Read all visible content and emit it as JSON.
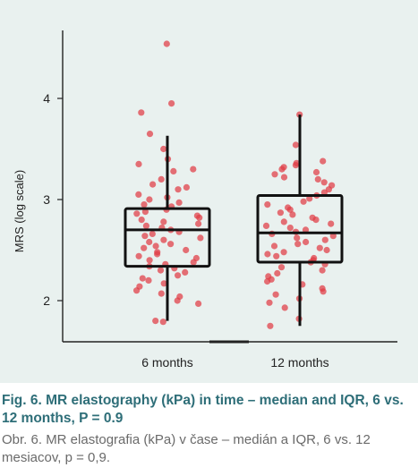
{
  "chart_data": {
    "type": "box-strip",
    "ylabel": "MRS (log scale)",
    "categories": [
      "6 months",
      "12 months"
    ],
    "yticks": [
      2,
      3,
      4
    ],
    "ylim": [
      1.6,
      4.7
    ],
    "y_scale": "linear",
    "grid": false,
    "point_color": "#e03c44",
    "box_color": "#111111",
    "boxes": [
      {
        "category": "6 months",
        "whisker_low": 1.8,
        "q1": 2.34,
        "median": 2.7,
        "q3": 2.91,
        "whisker_high": 3.63
      },
      {
        "category": "12 months",
        "whisker_low": 1.75,
        "q1": 2.38,
        "median": 2.67,
        "q3": 3.04,
        "whisker_high": 3.84
      }
    ],
    "points": [
      {
        "category": "6 months",
        "values": [
          4.54,
          3.95,
          3.86,
          3.65,
          3.5,
          3.4,
          3.35,
          3.3,
          3.28,
          3.2,
          3.15,
          3.12,
          3.1,
          3.05,
          3.02,
          3.0,
          2.97,
          2.95,
          2.93,
          2.9,
          2.88,
          2.86,
          2.84,
          2.82,
          2.8,
          2.78,
          2.76,
          2.74,
          2.72,
          2.7,
          2.68,
          2.66,
          2.64,
          2.62,
          2.6,
          2.58,
          2.56,
          2.54,
          2.52,
          2.5,
          2.48,
          2.46,
          2.44,
          2.42,
          2.4,
          2.38,
          2.36,
          2.34,
          2.32,
          2.3,
          2.28,
          2.25,
          2.22,
          2.2,
          2.17,
          2.14,
          2.1,
          2.07,
          2.04,
          2.0,
          1.97,
          1.8,
          1.79
        ]
      },
      {
        "category": "12 months",
        "values": [
          3.84,
          3.54,
          3.38,
          3.36,
          3.34,
          3.32,
          3.3,
          3.27,
          3.25,
          3.22,
          3.2,
          3.17,
          3.14,
          3.1,
          3.07,
          3.04,
          3.01,
          2.98,
          2.95,
          2.92,
          2.9,
          2.87,
          2.85,
          2.82,
          2.8,
          2.78,
          2.76,
          2.74,
          2.72,
          2.7,
          2.68,
          2.66,
          2.64,
          2.62,
          2.6,
          2.58,
          2.56,
          2.54,
          2.52,
          2.5,
          2.48,
          2.46,
          2.44,
          2.42,
          2.4,
          2.38,
          2.36,
          2.33,
          2.3,
          2.27,
          2.24,
          2.21,
          2.19,
          2.16,
          2.12,
          2.09,
          2.06,
          2.02,
          1.98,
          1.93,
          1.82,
          1.75
        ]
      }
    ]
  },
  "caption": {
    "english": "Fig. 6. MR elastography (kPa) in time – median and IQR, 6 vs. 12 months, P = 0.9",
    "local": "Obr. 6. MR elastografia (kPa) v čase – medián a IQR, 6 vs. 12 mesiacov, p = 0,9."
  }
}
